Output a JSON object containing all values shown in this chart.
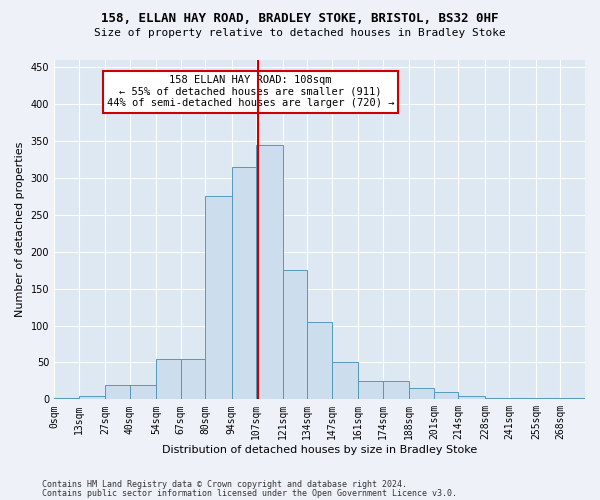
{
  "title1": "158, ELLAN HAY ROAD, BRADLEY STOKE, BRISTOL, BS32 0HF",
  "title2": "Size of property relative to detached houses in Bradley Stoke",
  "xlabel": "Distribution of detached houses by size in Bradley Stoke",
  "ylabel": "Number of detached properties",
  "footer1": "Contains HM Land Registry data © Crown copyright and database right 2024.",
  "footer2": "Contains public sector information licensed under the Open Government Licence v3.0.",
  "annotation_line1": "158 ELLAN HAY ROAD: 108sqm",
  "annotation_line2": "← 55% of detached houses are smaller (911)",
  "annotation_line3": "44% of semi-detached houses are larger (720) →",
  "bar_labels": [
    "0sqm",
    "13sqm",
    "27sqm",
    "40sqm",
    "54sqm",
    "67sqm",
    "80sqm",
    "94sqm",
    "107sqm",
    "121sqm",
    "134sqm",
    "147sqm",
    "161sqm",
    "174sqm",
    "188sqm",
    "201sqm",
    "214sqm",
    "228sqm",
    "241sqm",
    "255sqm",
    "268sqm"
  ],
  "bar_left_edges": [
    0,
    13,
    27,
    40,
    54,
    67,
    80,
    94,
    107,
    121,
    134,
    147,
    161,
    174,
    188,
    201,
    214,
    228,
    241,
    255,
    268
  ],
  "bar_widths": [
    13,
    14,
    13,
    14,
    13,
    13,
    14,
    13,
    14,
    13,
    13,
    14,
    13,
    14,
    13,
    13,
    14,
    13,
    14,
    13,
    13
  ],
  "bar_heights": [
    2,
    5,
    20,
    20,
    55,
    55,
    275,
    315,
    345,
    175,
    105,
    50,
    25,
    25,
    15,
    10,
    5,
    2,
    2,
    2,
    2
  ],
  "bar_color": "#ccdded",
  "bar_edgecolor": "#5599bb",
  "vline_color": "#cc0000",
  "vline_x": 108,
  "ylim": [
    0,
    460
  ],
  "yticks": [
    0,
    50,
    100,
    150,
    200,
    250,
    300,
    350,
    400,
    450
  ],
  "xlim": [
    0,
    281
  ],
  "bg_color": "#eef2f8",
  "plot_bg_color": "#dde8f2",
  "grid_color": "#ffffff",
  "annotation_box_facecolor": "#ffffff",
  "annotation_box_edgecolor": "#cc0000",
  "title1_fontsize": 9,
  "title2_fontsize": 8,
  "ylabel_fontsize": 8,
  "xlabel_fontsize": 8,
  "tick_fontsize": 7,
  "footer_fontsize": 6,
  "ann_fontsize": 7.5
}
